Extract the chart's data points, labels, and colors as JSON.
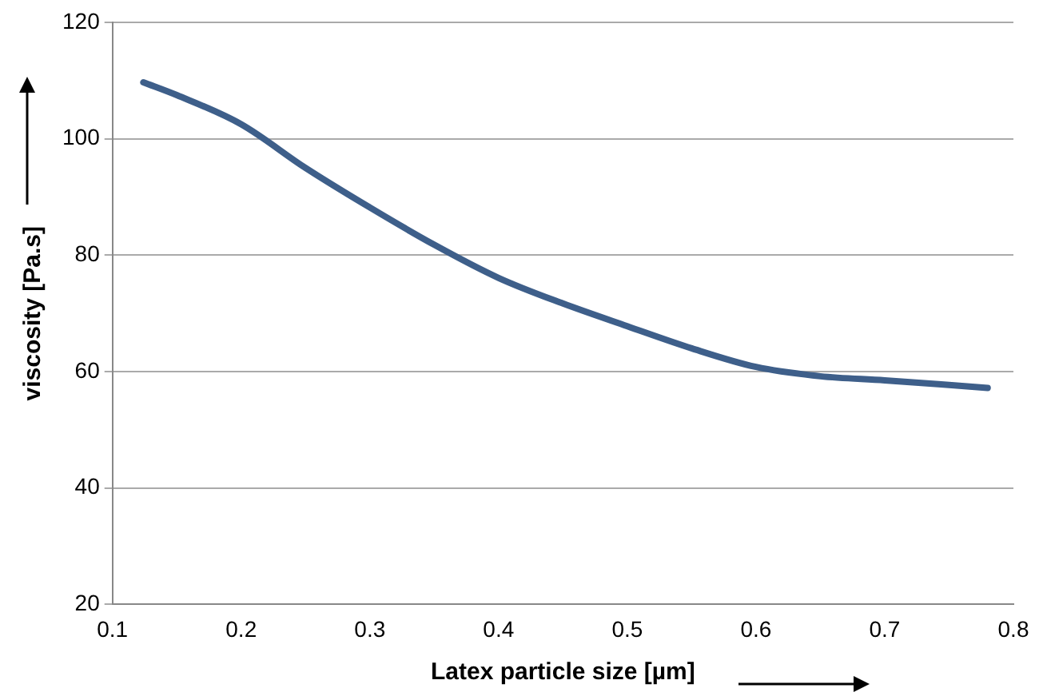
{
  "chart_data": {
    "type": "line",
    "xlabel": "Latex particle size [µm]",
    "ylabel": "viscosity [Pa.s]",
    "series": [
      {
        "color": "#3e5f8a",
        "x": [
          0.124,
          0.15,
          0.2,
          0.25,
          0.3,
          0.35,
          0.4,
          0.45,
          0.5,
          0.55,
          0.6,
          0.65,
          0.7,
          0.75,
          0.78
        ],
        "values": [
          109.7,
          107.5,
          102.5,
          95,
          88.2,
          81.8,
          76.1,
          71.7,
          67.8,
          64,
          60.8,
          59.2,
          58.5,
          57.7,
          57.2
        ]
      }
    ],
    "xlim": [
      0.1,
      0.8
    ],
    "xticks": [
      0.1,
      0.2,
      0.3,
      0.4,
      0.5,
      0.6,
      0.7,
      0.8
    ],
    "ylim": [
      20,
      120
    ],
    "yticks": [
      20,
      40,
      60,
      80,
      100,
      120
    ],
    "grid": "y",
    "legend": false,
    "marker": "none",
    "line_style": "solid"
  }
}
